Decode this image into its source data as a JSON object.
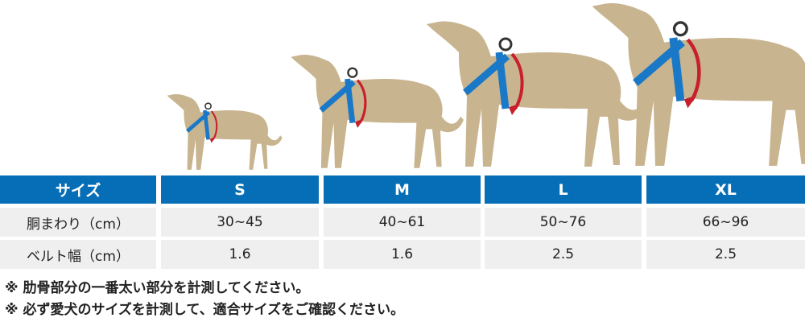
{
  "colors": {
    "header": "#066eb6",
    "cell": "#efefef",
    "dog": "#c8b48f",
    "harness": "#1a78c8",
    "arrow": "#c8202a"
  },
  "dogs": [
    {
      "size": "S",
      "icon": "dog-s-icon"
    },
    {
      "size": "M",
      "icon": "dog-m-icon"
    },
    {
      "size": "L",
      "icon": "dog-l-icon"
    },
    {
      "size": "XL",
      "icon": "dog-xl-icon"
    }
  ],
  "table": {
    "header": [
      "サイズ",
      "S",
      "M",
      "L",
      "XL"
    ],
    "rows": [
      {
        "label": "胴まわり（cm）",
        "values": [
          "30~45",
          "40~61",
          "50~76",
          "66~96"
        ]
      },
      {
        "label": "ベルト幅（cm）",
        "values": [
          "1.6",
          "1.6",
          "2.5",
          "2.5"
        ]
      }
    ]
  },
  "notes": [
    "※ 肋骨部分の一番太い部分を計測してください。",
    "※ 必ず愛犬のサイズを計測して、適合サイズをご確認ください。"
  ]
}
